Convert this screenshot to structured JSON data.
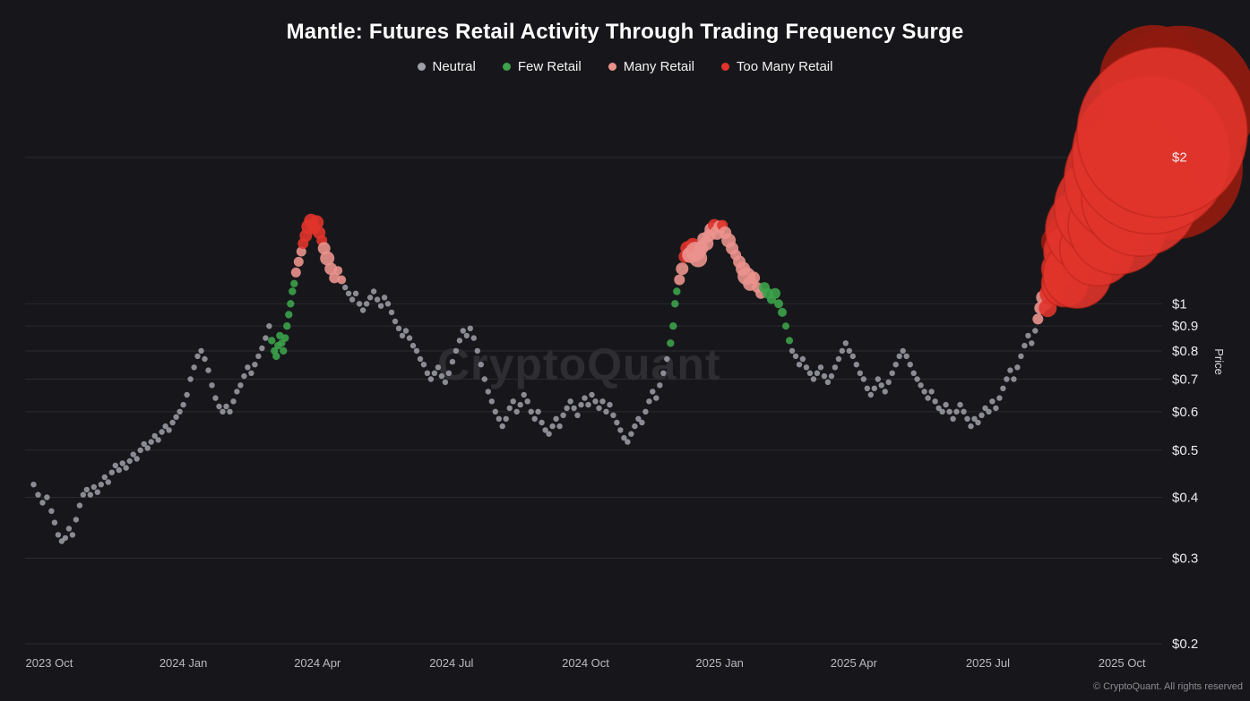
{
  "title": "Mantle: Futures Retail Activity Through Trading Frequency Surge",
  "watermark": "CryptoQuant",
  "footer": "© CryptoQuant. All rights reserved",
  "colors": {
    "background": "#17171b",
    "grid": "#2a2a2f",
    "tick_label_x": "#b9b9bf",
    "tick_label_y": "#ececef",
    "axis_label": "#dcdcde",
    "blob_shade": "#8e1a10"
  },
  "legend": {
    "position": "top",
    "items": [
      {
        "label": "Neutral",
        "color": "#a0a0a8"
      },
      {
        "label": "Few Retail",
        "color": "#3ca24a"
      },
      {
        "label": "Many Retail",
        "color": "#eb928d"
      },
      {
        "label": "Too Many Retail",
        "color": "#e0342b"
      }
    ]
  },
  "chart_data": {
    "type": "scatter",
    "title": "Mantle: Futures Retail Activity Through Trading Frequency Surge",
    "xlabel": "",
    "ylabel": "Price",
    "y_scale": "log",
    "x_unit": "months since 2023-10-01",
    "xlim": [
      -0.54,
      24.9
    ],
    "ylim": [
      0.191,
      2.9
    ],
    "grid": true,
    "categories": [
      "Neutral",
      "Few Retail",
      "Many Retail",
      "Too Many Retail"
    ],
    "point_format": "[months_since_2023_10, price_usd, category_index(optional: 0 neutral,1 few,2 many,3 too-many,4 too-many-dense-shade), bubble_radius_px(optional)]",
    "x_ticks": [
      {
        "m": 0,
        "label": "2023 Oct"
      },
      {
        "m": 3,
        "label": "2024 Jan"
      },
      {
        "m": 6,
        "label": "2024 Apr"
      },
      {
        "m": 9,
        "label": "2024 Jul"
      },
      {
        "m": 12,
        "label": "2024 Oct"
      },
      {
        "m": 15,
        "label": "2025 Jan"
      },
      {
        "m": 18,
        "label": "2025 Apr"
      },
      {
        "m": 21,
        "label": "2025 Jul"
      },
      {
        "m": 24,
        "label": "2025 Oct"
      }
    ],
    "y_ticks": [
      {
        "value": 2,
        "label": "$2"
      },
      {
        "value": 1,
        "label": "$1"
      },
      {
        "value": 0.9,
        "label": "$0.9"
      },
      {
        "value": 0.8,
        "label": "$0.8"
      },
      {
        "value": 0.7,
        "label": "$0.7"
      },
      {
        "value": 0.6,
        "label": "$0.6"
      },
      {
        "value": 0.5,
        "label": "$0.5"
      },
      {
        "value": 0.4,
        "label": "$0.4"
      },
      {
        "value": 0.3,
        "label": "$0.3"
      },
      {
        "value": 0.2,
        "label": "$0.2"
      }
    ],
    "points": [
      [
        -0.35,
        0.425
      ],
      [
        -0.25,
        0.405
      ],
      [
        -0.15,
        0.39
      ],
      [
        -0.05,
        0.4
      ],
      [
        0.05,
        0.375
      ],
      [
        0.12,
        0.355
      ],
      [
        0.2,
        0.335
      ],
      [
        0.28,
        0.325
      ],
      [
        0.36,
        0.33
      ],
      [
        0.44,
        0.345
      ],
      [
        0.52,
        0.335
      ],
      [
        0.6,
        0.36
      ],
      [
        0.68,
        0.385
      ],
      [
        0.76,
        0.405
      ],
      [
        0.84,
        0.415
      ],
      [
        0.92,
        0.405
      ],
      [
        1.0,
        0.42
      ],
      [
        1.08,
        0.41
      ],
      [
        1.16,
        0.425
      ],
      [
        1.24,
        0.44
      ],
      [
        1.32,
        0.43
      ],
      [
        1.4,
        0.45
      ],
      [
        1.48,
        0.465
      ],
      [
        1.56,
        0.455
      ],
      [
        1.64,
        0.47
      ],
      [
        1.72,
        0.46
      ],
      [
        1.8,
        0.475
      ],
      [
        1.88,
        0.49
      ],
      [
        1.96,
        0.48
      ],
      [
        2.04,
        0.5
      ],
      [
        2.12,
        0.515
      ],
      [
        2.2,
        0.505
      ],
      [
        2.28,
        0.52
      ],
      [
        2.36,
        0.535
      ],
      [
        2.44,
        0.525
      ],
      [
        2.52,
        0.545
      ],
      [
        2.6,
        0.56
      ],
      [
        2.68,
        0.55
      ],
      [
        2.76,
        0.57
      ],
      [
        2.84,
        0.585
      ],
      [
        2.92,
        0.6
      ],
      [
        3.0,
        0.62
      ],
      [
        3.08,
        0.65
      ],
      [
        3.16,
        0.7
      ],
      [
        3.24,
        0.74
      ],
      [
        3.32,
        0.78
      ],
      [
        3.4,
        0.8
      ],
      [
        3.48,
        0.77
      ],
      [
        3.56,
        0.73
      ],
      [
        3.64,
        0.68
      ],
      [
        3.72,
        0.64
      ],
      [
        3.8,
        0.615
      ],
      [
        3.88,
        0.6
      ],
      [
        3.96,
        0.615
      ],
      [
        4.04,
        0.6
      ],
      [
        4.12,
        0.63
      ],
      [
        4.2,
        0.66
      ],
      [
        4.28,
        0.68
      ],
      [
        4.36,
        0.71
      ],
      [
        4.44,
        0.74
      ],
      [
        4.52,
        0.72
      ],
      [
        4.6,
        0.75
      ],
      [
        4.68,
        0.78
      ],
      [
        4.76,
        0.81
      ],
      [
        4.84,
        0.85
      ],
      [
        4.92,
        0.9
      ],
      [
        4.98,
        0.84,
        1
      ],
      [
        5.04,
        0.8,
        1
      ],
      [
        5.08,
        0.78,
        1
      ],
      [
        5.12,
        0.82,
        1
      ],
      [
        5.16,
        0.86,
        1
      ],
      [
        5.2,
        0.83,
        1
      ],
      [
        5.24,
        0.8,
        1
      ],
      [
        5.28,
        0.85,
        1
      ],
      [
        5.32,
        0.9,
        1
      ],
      [
        5.36,
        0.95,
        1
      ],
      [
        5.4,
        1.0,
        1
      ],
      [
        5.44,
        1.06,
        1
      ],
      [
        5.48,
        1.1,
        1
      ],
      [
        5.52,
        1.16,
        2
      ],
      [
        5.58,
        1.22,
        2
      ],
      [
        5.64,
        1.28,
        2
      ],
      [
        5.68,
        1.33,
        3,
        6
      ],
      [
        5.74,
        1.38,
        3,
        7
      ],
      [
        5.8,
        1.44,
        3,
        8
      ],
      [
        5.86,
        1.48,
        3,
        8
      ],
      [
        5.92,
        1.43,
        3,
        7
      ],
      [
        5.98,
        1.47,
        3,
        8
      ],
      [
        6.04,
        1.4,
        3,
        7
      ],
      [
        6.1,
        1.35,
        3,
        6
      ],
      [
        6.15,
        1.3,
        2,
        7
      ],
      [
        6.22,
        1.24,
        2,
        8
      ],
      [
        6.3,
        1.18,
        2,
        7
      ],
      [
        6.38,
        1.13,
        2,
        6
      ],
      [
        6.46,
        1.17,
        2,
        5
      ],
      [
        6.54,
        1.12,
        2,
        5
      ],
      [
        6.62,
        1.08
      ],
      [
        6.7,
        1.05
      ],
      [
        6.78,
        1.02
      ],
      [
        6.86,
        1.05
      ],
      [
        6.94,
        1.0
      ],
      [
        7.02,
        0.97
      ],
      [
        7.1,
        1.0
      ],
      [
        7.18,
        1.03
      ],
      [
        7.26,
        1.06
      ],
      [
        7.34,
        1.02
      ],
      [
        7.42,
        0.99
      ],
      [
        7.5,
        1.03
      ],
      [
        7.58,
        1.0
      ],
      [
        7.66,
        0.96
      ],
      [
        7.74,
        0.92
      ],
      [
        7.82,
        0.89
      ],
      [
        7.9,
        0.86
      ],
      [
        7.98,
        0.88
      ],
      [
        8.06,
        0.85
      ],
      [
        8.14,
        0.82
      ],
      [
        8.22,
        0.8
      ],
      [
        8.3,
        0.77
      ],
      [
        8.38,
        0.75
      ],
      [
        8.46,
        0.72
      ],
      [
        8.54,
        0.7
      ],
      [
        8.62,
        0.72
      ],
      [
        8.7,
        0.74
      ],
      [
        8.78,
        0.71
      ],
      [
        8.86,
        0.69
      ],
      [
        8.94,
        0.72
      ],
      [
        9.02,
        0.76
      ],
      [
        9.1,
        0.8
      ],
      [
        9.18,
        0.84
      ],
      [
        9.26,
        0.88
      ],
      [
        9.34,
        0.86
      ],
      [
        9.42,
        0.89
      ],
      [
        9.5,
        0.85
      ],
      [
        9.58,
        0.8
      ],
      [
        9.66,
        0.75
      ],
      [
        9.74,
        0.7
      ],
      [
        9.82,
        0.66
      ],
      [
        9.9,
        0.63
      ],
      [
        9.98,
        0.6
      ],
      [
        10.06,
        0.58
      ],
      [
        10.14,
        0.56
      ],
      [
        10.22,
        0.58
      ],
      [
        10.3,
        0.61
      ],
      [
        10.38,
        0.63
      ],
      [
        10.46,
        0.6
      ],
      [
        10.54,
        0.62
      ],
      [
        10.62,
        0.65
      ],
      [
        10.7,
        0.63
      ],
      [
        10.78,
        0.6
      ],
      [
        10.86,
        0.58
      ],
      [
        10.94,
        0.6
      ],
      [
        11.02,
        0.57
      ],
      [
        11.1,
        0.55
      ],
      [
        11.18,
        0.54
      ],
      [
        11.26,
        0.56
      ],
      [
        11.34,
        0.58
      ],
      [
        11.42,
        0.56
      ],
      [
        11.5,
        0.59
      ],
      [
        11.58,
        0.61
      ],
      [
        11.66,
        0.63
      ],
      [
        11.74,
        0.61
      ],
      [
        11.82,
        0.59
      ],
      [
        11.9,
        0.62
      ],
      [
        11.98,
        0.64
      ],
      [
        12.06,
        0.62
      ],
      [
        12.14,
        0.65
      ],
      [
        12.22,
        0.63
      ],
      [
        12.3,
        0.61
      ],
      [
        12.38,
        0.63
      ],
      [
        12.46,
        0.6
      ],
      [
        12.54,
        0.62
      ],
      [
        12.62,
        0.59
      ],
      [
        12.7,
        0.57
      ],
      [
        12.78,
        0.55
      ],
      [
        12.86,
        0.53
      ],
      [
        12.94,
        0.52
      ],
      [
        13.02,
        0.54
      ],
      [
        13.1,
        0.56
      ],
      [
        13.18,
        0.58
      ],
      [
        13.26,
        0.57
      ],
      [
        13.34,
        0.6
      ],
      [
        13.42,
        0.63
      ],
      [
        13.5,
        0.66
      ],
      [
        13.58,
        0.64
      ],
      [
        13.66,
        0.68
      ],
      [
        13.74,
        0.72
      ],
      [
        13.82,
        0.77
      ],
      [
        13.9,
        0.83,
        1
      ],
      [
        13.96,
        0.9,
        1
      ],
      [
        14.0,
        1.0,
        1
      ],
      [
        14.04,
        1.06,
        1
      ],
      [
        14.1,
        1.12,
        2,
        6
      ],
      [
        14.16,
        1.18,
        2,
        7
      ],
      [
        14.22,
        1.25,
        3,
        7
      ],
      [
        14.28,
        1.3,
        3,
        8
      ],
      [
        14.34,
        1.26,
        2,
        9
      ],
      [
        14.4,
        1.32,
        3,
        8
      ],
      [
        14.46,
        1.28,
        2,
        11
      ],
      [
        14.52,
        1.24,
        2,
        10
      ],
      [
        14.58,
        1.3,
        2,
        8
      ],
      [
        14.64,
        1.36,
        2,
        7
      ],
      [
        14.7,
        1.33,
        2,
        8
      ],
      [
        14.76,
        1.38,
        2,
        7
      ],
      [
        14.82,
        1.42,
        2,
        8
      ],
      [
        14.88,
        1.45,
        3,
        7
      ],
      [
        14.94,
        1.4,
        2,
        8
      ],
      [
        15.0,
        1.44,
        2,
        7
      ],
      [
        15.06,
        1.45,
        3,
        6
      ],
      [
        15.12,
        1.4,
        2,
        7
      ],
      [
        15.2,
        1.35,
        2,
        8
      ],
      [
        15.28,
        1.3,
        2,
        7
      ],
      [
        15.36,
        1.26,
        2,
        6
      ],
      [
        15.44,
        1.22,
        2,
        7
      ],
      [
        15.52,
        1.18,
        2,
        8
      ],
      [
        15.6,
        1.14,
        2,
        10
      ],
      [
        15.68,
        1.1,
        2,
        8
      ],
      [
        15.76,
        1.13,
        2,
        7
      ],
      [
        15.84,
        1.08,
        2,
        6
      ],
      [
        15.92,
        1.05,
        2,
        6
      ],
      [
        16.0,
        1.08,
        1,
        6
      ],
      [
        16.08,
        1.05,
        1,
        6
      ],
      [
        16.16,
        1.02,
        1,
        5
      ],
      [
        16.24,
        1.05,
        1,
        6
      ],
      [
        16.32,
        1.0,
        1,
        5
      ],
      [
        16.4,
        0.96,
        1,
        5
      ],
      [
        16.48,
        0.9,
        1,
        4
      ],
      [
        16.56,
        0.84,
        1,
        4
      ],
      [
        16.62,
        0.8
      ],
      [
        16.7,
        0.78
      ],
      [
        16.78,
        0.75
      ],
      [
        16.86,
        0.77
      ],
      [
        16.94,
        0.74
      ],
      [
        17.02,
        0.72
      ],
      [
        17.1,
        0.7
      ],
      [
        17.18,
        0.72
      ],
      [
        17.26,
        0.74
      ],
      [
        17.34,
        0.71
      ],
      [
        17.42,
        0.69
      ],
      [
        17.5,
        0.71
      ],
      [
        17.58,
        0.74
      ],
      [
        17.66,
        0.77
      ],
      [
        17.74,
        0.8
      ],
      [
        17.82,
        0.83
      ],
      [
        17.9,
        0.8
      ],
      [
        17.98,
        0.78
      ],
      [
        18.06,
        0.75
      ],
      [
        18.14,
        0.72
      ],
      [
        18.22,
        0.7
      ],
      [
        18.3,
        0.67
      ],
      [
        18.38,
        0.65
      ],
      [
        18.46,
        0.67
      ],
      [
        18.54,
        0.7
      ],
      [
        18.62,
        0.68
      ],
      [
        18.7,
        0.66
      ],
      [
        18.78,
        0.69
      ],
      [
        18.86,
        0.72
      ],
      [
        18.94,
        0.75
      ],
      [
        19.02,
        0.78
      ],
      [
        19.1,
        0.8
      ],
      [
        19.18,
        0.78
      ],
      [
        19.26,
        0.75
      ],
      [
        19.34,
        0.72
      ],
      [
        19.42,
        0.7
      ],
      [
        19.5,
        0.68
      ],
      [
        19.58,
        0.66
      ],
      [
        19.66,
        0.64
      ],
      [
        19.74,
        0.66
      ],
      [
        19.82,
        0.63
      ],
      [
        19.9,
        0.61
      ],
      [
        19.98,
        0.6
      ],
      [
        20.06,
        0.62
      ],
      [
        20.14,
        0.6
      ],
      [
        20.22,
        0.58
      ],
      [
        20.3,
        0.6
      ],
      [
        20.38,
        0.62
      ],
      [
        20.46,
        0.6
      ],
      [
        20.54,
        0.58
      ],
      [
        20.62,
        0.56
      ],
      [
        20.7,
        0.58
      ],
      [
        20.78,
        0.57
      ],
      [
        20.86,
        0.59
      ],
      [
        20.94,
        0.61
      ],
      [
        21.02,
        0.6
      ],
      [
        21.1,
        0.63
      ],
      [
        21.18,
        0.61
      ],
      [
        21.26,
        0.64
      ],
      [
        21.34,
        0.67
      ],
      [
        21.42,
        0.7
      ],
      [
        21.5,
        0.73
      ],
      [
        21.58,
        0.7
      ],
      [
        21.66,
        0.74
      ],
      [
        21.74,
        0.78
      ],
      [
        21.82,
        0.82
      ],
      [
        21.9,
        0.86
      ],
      [
        21.98,
        0.83
      ],
      [
        22.06,
        0.88
      ],
      [
        22.12,
        0.93,
        2,
        6
      ],
      [
        22.18,
        0.98,
        2,
        7
      ],
      [
        22.24,
        1.03,
        2,
        8
      ],
      [
        22.3,
        1.0,
        2,
        7
      ],
      [
        22.36,
        1.06,
        2,
        8
      ],
      [
        22.55,
        1.34,
        4,
        18
      ],
      [
        23.1,
        1.35,
        4,
        40
      ],
      [
        24.7,
        2.9,
        4,
        60
      ],
      [
        25.1,
        1.9,
        4,
        80
      ],
      [
        25.3,
        2.6,
        4,
        85
      ],
      [
        22.34,
        0.98,
        3,
        10
      ],
      [
        22.42,
        1.05,
        3,
        13
      ],
      [
        22.6,
        1.18,
        3,
        20
      ],
      [
        22.72,
        1.1,
        3,
        26
      ],
      [
        22.85,
        1.28,
        3,
        30
      ],
      [
        23.0,
        1.15,
        3,
        38
      ],
      [
        23.25,
        1.42,
        3,
        48
      ],
      [
        23.45,
        1.3,
        3,
        42
      ],
      [
        23.65,
        1.58,
        3,
        58
      ],
      [
        23.9,
        1.45,
        3,
        55
      ],
      [
        24.15,
        1.8,
        3,
        72
      ],
      [
        24.4,
        1.65,
        3,
        65
      ],
      [
        24.65,
        2.02,
        3,
        88
      ],
      [
        24.9,
        2.25,
        3,
        95
      ]
    ]
  }
}
